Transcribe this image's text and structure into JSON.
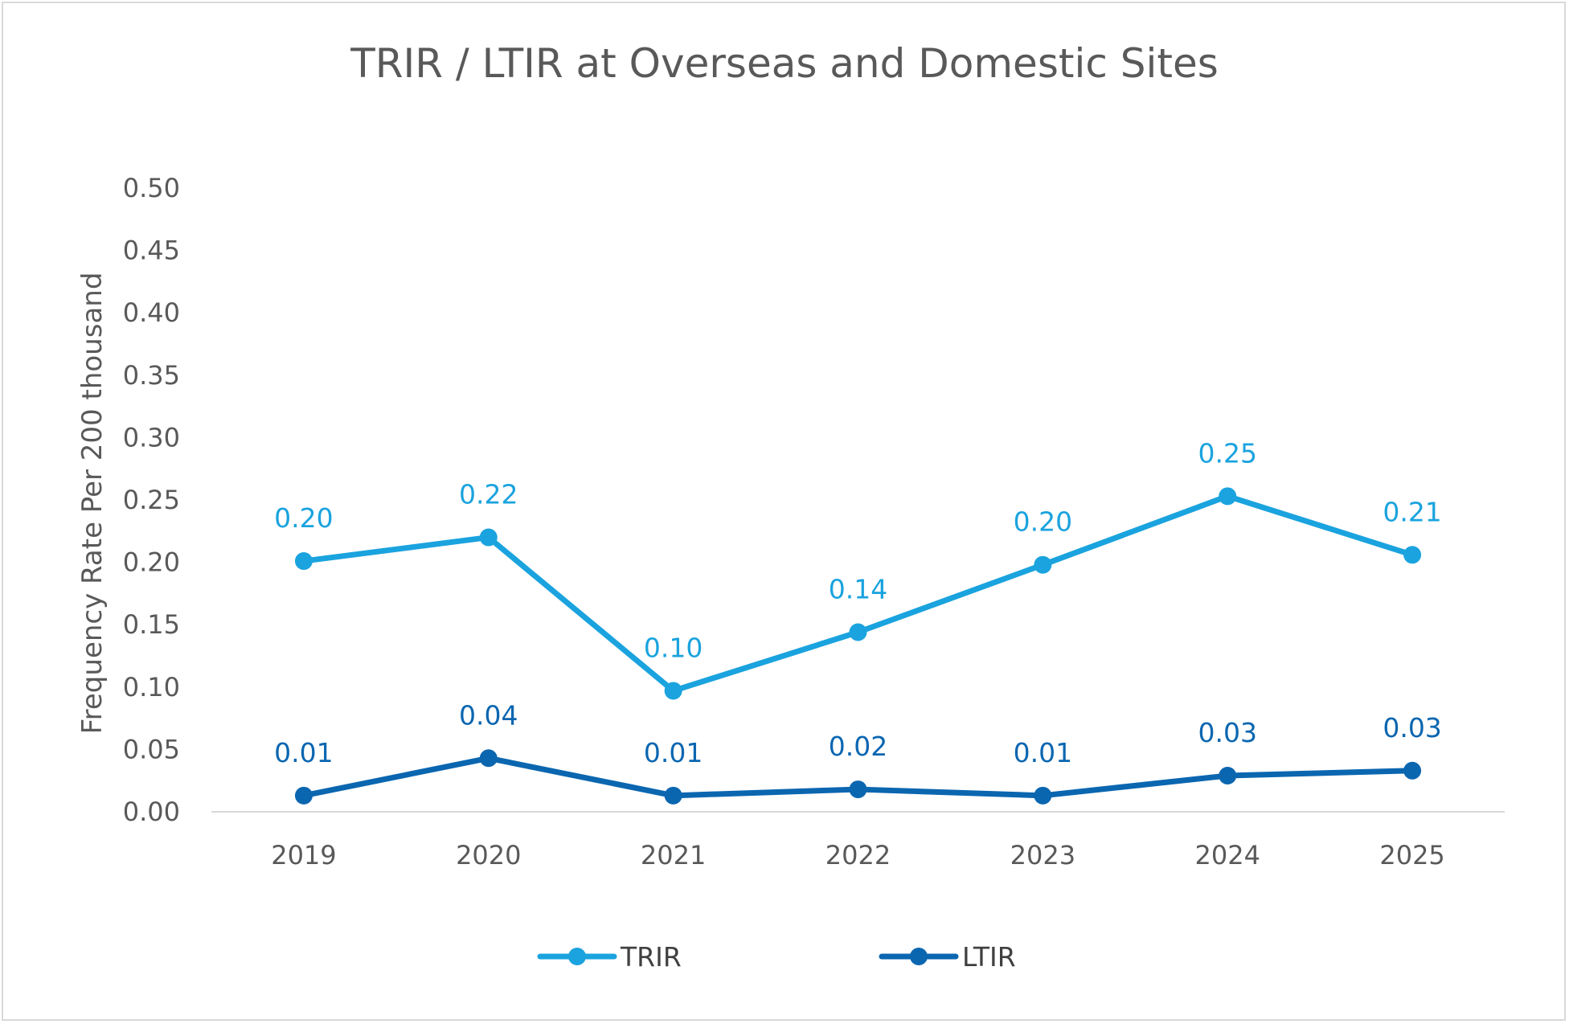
{
  "chart_data": {
    "type": "line",
    "title": "TRIR / LTIR at Overseas and Domestic Sites",
    "xlabel": "",
    "ylabel": "Frequency Rate Per 200 thousand",
    "categories": [
      "2019",
      "2020",
      "2021",
      "2022",
      "2023",
      "2024",
      "2025"
    ],
    "ylim": [
      0,
      0.5
    ],
    "yticks": [
      "0.00",
      "0.05",
      "0.10",
      "0.15",
      "0.20",
      "0.25",
      "0.30",
      "0.35",
      "0.40",
      "0.45",
      "0.50"
    ],
    "grid": false,
    "legend": "bottom",
    "series": [
      {
        "name": "TRIR",
        "color": "#1aa3de",
        "values": [
          0.201,
          0.22,
          0.097,
          0.144,
          0.198,
          0.253,
          0.206
        ],
        "labels": [
          "0.20",
          "0.22",
          "0.10",
          "0.14",
          "0.20",
          "0.25",
          "0.21"
        ]
      },
      {
        "name": "LTIR",
        "color": "#0b66b0",
        "values": [
          0.013,
          0.043,
          0.013,
          0.018,
          0.013,
          0.029,
          0.033
        ],
        "labels": [
          "0.01",
          "0.04",
          "0.01",
          "0.02",
          "0.01",
          "0.03",
          "0.03"
        ]
      }
    ]
  }
}
